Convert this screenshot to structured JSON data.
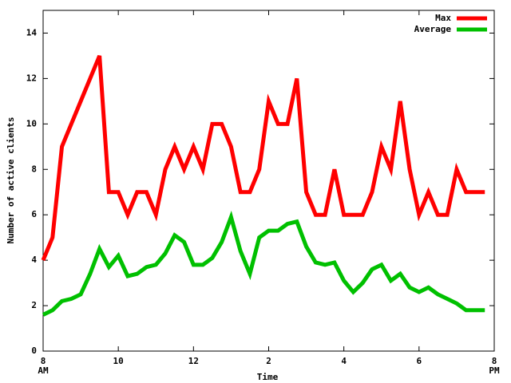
{
  "chart_data": {
    "type": "line",
    "x_label": "Time",
    "y_label": "Number of active clients",
    "x": [
      8,
      8.25,
      8.5,
      8.75,
      9,
      9.25,
      9.5,
      9.75,
      10,
      10.25,
      10.5,
      10.75,
      11,
      11.25,
      11.5,
      11.75,
      12,
      12.25,
      12.5,
      12.75,
      13,
      13.25,
      13.5,
      13.75,
      14,
      14.25,
      14.5,
      14.75,
      15,
      15.25,
      15.5,
      15.75,
      16,
      16.25,
      16.5,
      16.75,
      17,
      17.25,
      17.5,
      17.75,
      18,
      18.25,
      18.5,
      18.75,
      19,
      19.25,
      19.5,
      19.75
    ],
    "series": [
      {
        "name": "Max",
        "color": "#ff0000",
        "values": [
          4,
          5,
          9,
          10,
          11,
          12,
          13,
          7,
          7,
          6,
          7,
          7,
          6,
          8,
          9,
          8,
          9,
          8,
          10,
          10,
          9,
          7,
          7,
          8,
          11,
          10,
          10,
          12,
          7,
          6,
          6,
          8,
          6,
          6,
          6,
          7,
          9,
          8,
          11,
          8,
          6,
          7,
          6,
          6,
          8,
          7,
          7,
          7
        ]
      },
      {
        "name": "Average",
        "color": "#00c000",
        "values": [
          1.6,
          1.8,
          2.2,
          2.3,
          2.5,
          3.4,
          4.5,
          3.7,
          4.2,
          3.3,
          3.4,
          3.7,
          3.8,
          4.3,
          5.1,
          4.8,
          3.8,
          3.8,
          4.1,
          4.8,
          5.9,
          4.4,
          3.4,
          5.0,
          5.3,
          5.3,
          5.6,
          5.7,
          4.6,
          3.9,
          3.8,
          3.9,
          3.1,
          2.6,
          3.0,
          3.6,
          3.8,
          3.1,
          3.4,
          2.8,
          2.6,
          2.8,
          2.5,
          2.3,
          2.1,
          1.8,
          1.8,
          1.8
        ]
      }
    ],
    "xlim": [
      8,
      20
    ],
    "xticks": [
      {
        "value": 8,
        "label": "8\nAM"
      },
      10,
      12,
      {
        "value": 14,
        "label": "2"
      },
      {
        "value": 16,
        "label": "4"
      },
      {
        "value": 18,
        "label": "6"
      },
      {
        "value": 20,
        "label": "8\nPM"
      }
    ],
    "ylim": [
      0,
      15
    ],
    "yticks": [
      0,
      2,
      4,
      6,
      8,
      10,
      12,
      14
    ],
    "grid": false,
    "legend": "top-right"
  }
}
